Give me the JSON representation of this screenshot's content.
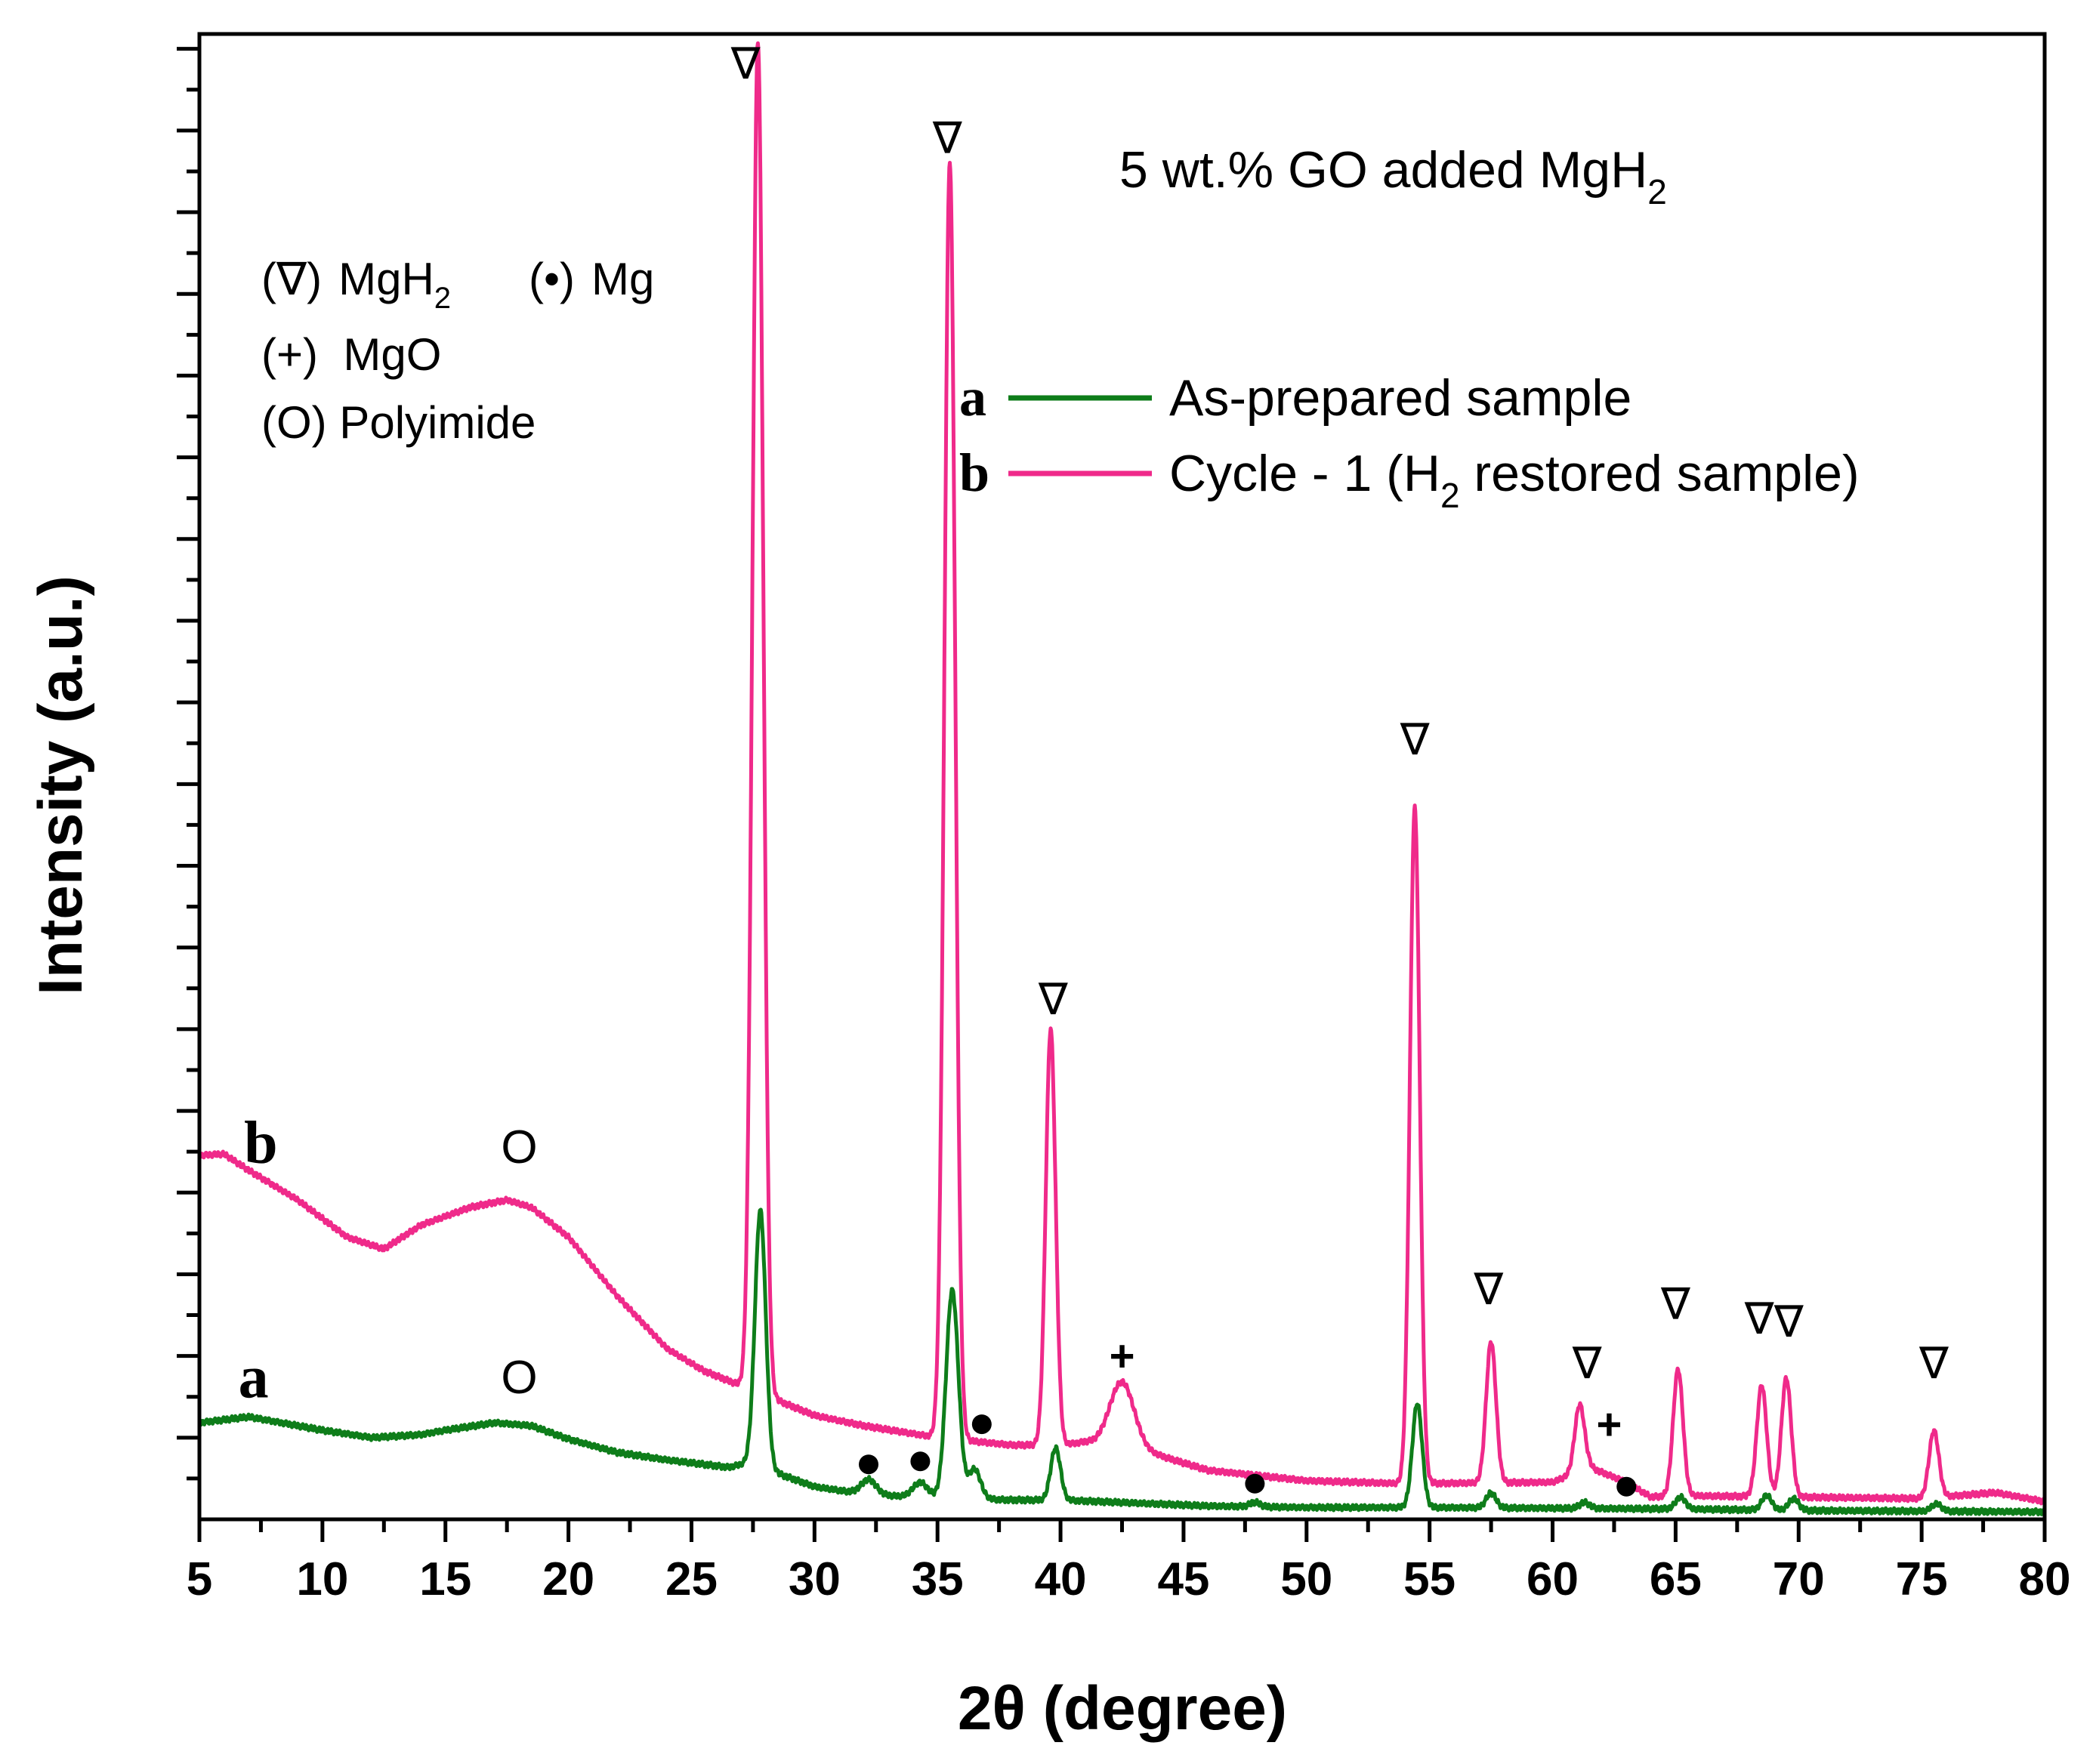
{
  "chart_data": {
    "type": "line",
    "title": "5 wt.% GO added MgH",
    "title_sub": "2",
    "xlabel": "2θ (degree)",
    "ylabel": "Intensity (a.u.)",
    "xlim": [
      5,
      80
    ],
    "ylim": [
      0,
      100
    ],
    "x_ticks": [
      5,
      10,
      15,
      20,
      25,
      30,
      35,
      40,
      45,
      50,
      55,
      60,
      65,
      70,
      75,
      80
    ],
    "y_tick_step": 5.5,
    "phase_legend": {
      "row1_a_symbol": "(∇)",
      "row1_a_name": "MgH",
      "row1_a_sub": "2",
      "row1_b_symbol": "(•)",
      "row1_b_name": "Mg",
      "row2": "(+)  MgO",
      "row3": "(O) Polyimide"
    },
    "series": [
      {
        "name": "As-prepared sample",
        "letter": "a",
        "color": "#0e7d1a",
        "baseline": [
          [
            5,
            6.5
          ],
          [
            7,
            6.9
          ],
          [
            10,
            6.0
          ],
          [
            12,
            5.5
          ],
          [
            14,
            5.7
          ],
          [
            15,
            6.0
          ],
          [
            17,
            6.5
          ],
          [
            18.5,
            6.3
          ],
          [
            20,
            5.4
          ],
          [
            22,
            4.5
          ],
          [
            24,
            4.0
          ],
          [
            26.5,
            3.5
          ],
          [
            27.3,
            3.8
          ],
          [
            30,
            2.2
          ],
          [
            32,
            1.7
          ],
          [
            34,
            1.5
          ],
          [
            38,
            1.3
          ],
          [
            40,
            1.3
          ],
          [
            43,
            1.1
          ],
          [
            46,
            0.9
          ],
          [
            50,
            0.8
          ],
          [
            55,
            0.8
          ],
          [
            60,
            0.75
          ],
          [
            65,
            0.7
          ],
          [
            70,
            0.6
          ],
          [
            75,
            0.55
          ],
          [
            80,
            0.5
          ]
        ],
        "peaks": [
          [
            27.8,
            17.3,
            0.22
          ],
          [
            32.2,
            1.0,
            0.3
          ],
          [
            34.3,
            1.0,
            0.3
          ],
          [
            35.6,
            14.0,
            0.25
          ],
          [
            36.5,
            2.0,
            0.25
          ],
          [
            39.8,
            3.5,
            0.2
          ],
          [
            47.9,
            0.3,
            0.2
          ],
          [
            54.5,
            7.0,
            0.2
          ],
          [
            57.5,
            1.0,
            0.2
          ],
          [
            61.3,
            0.4,
            0.2
          ],
          [
            65.2,
            0.8,
            0.2
          ],
          [
            68.7,
            1.0,
            0.2
          ],
          [
            69.8,
            0.8,
            0.2
          ],
          [
            75.6,
            0.5,
            0.2
          ]
        ]
      },
      {
        "name": "Cycle - 1 (H",
        "name_sub": "2",
        "name_tail": " restored sample)",
        "letter": "b",
        "color": "#ef2a8a",
        "baseline": [
          [
            5,
            24.5
          ],
          [
            6,
            24.6
          ],
          [
            7,
            23.5
          ],
          [
            9,
            21.5
          ],
          [
            11,
            19.0
          ],
          [
            12.5,
            18.2
          ],
          [
            14,
            19.8
          ],
          [
            16,
            21.0
          ],
          [
            17.5,
            21.5
          ],
          [
            18.5,
            21.0
          ],
          [
            20,
            19.0
          ],
          [
            22,
            15.0
          ],
          [
            24,
            11.5
          ],
          [
            25.5,
            10.0
          ],
          [
            27,
            9.0
          ],
          [
            30,
            7.0
          ],
          [
            32,
            6.3
          ],
          [
            35,
            5.5
          ],
          [
            38,
            5.0
          ],
          [
            40,
            5.0
          ],
          [
            41,
            5.2
          ],
          [
            44,
            4.3
          ],
          [
            46,
            3.3
          ],
          [
            50,
            2.6
          ],
          [
            54,
            2.4
          ],
          [
            60,
            2.5
          ],
          [
            61.5,
            3.5
          ],
          [
            63,
            2.5
          ],
          [
            64,
            1.5
          ],
          [
            65,
            1.6
          ],
          [
            70,
            1.5
          ],
          [
            75,
            1.4
          ],
          [
            78,
            1.8
          ],
          [
            80,
            1.2
          ]
        ],
        "peaks": [
          [
            27.7,
            91.0,
            0.22
          ],
          [
            35.5,
            86.0,
            0.22
          ],
          [
            39.6,
            28.0,
            0.2
          ],
          [
            42.5,
            4.5,
            0.5
          ],
          [
            54.4,
            45.5,
            0.2
          ],
          [
            57.5,
            9.5,
            0.2
          ],
          [
            61.1,
            4.5,
            0.2
          ],
          [
            65.1,
            8.5,
            0.2
          ],
          [
            68.5,
            7.5,
            0.2
          ],
          [
            69.5,
            8.0,
            0.2
          ],
          [
            75.5,
            4.5,
            0.2
          ]
        ]
      }
    ],
    "curve_labels": [
      {
        "text": "b",
        "x": 7.5,
        "y": 24.0
      },
      {
        "text": "a",
        "x": 7.2,
        "y": 8.2
      }
    ],
    "annotations": [
      {
        "text": "∇",
        "x": 27.2,
        "y": 97.0
      },
      {
        "text": "∇",
        "x": 35.4,
        "y": 92.0
      },
      {
        "text": "∇",
        "x": 39.7,
        "y": 34.0
      },
      {
        "text": "∇",
        "x": 54.4,
        "y": 51.5
      },
      {
        "text": "∇",
        "x": 57.4,
        "y": 14.5
      },
      {
        "text": "∇",
        "x": 61.4,
        "y": 9.5
      },
      {
        "text": "∇",
        "x": 65.0,
        "y": 13.5
      },
      {
        "text": "∇",
        "x": 68.4,
        "y": 12.5
      },
      {
        "text": "∇",
        "x": 69.6,
        "y": 12.3
      },
      {
        "text": "∇",
        "x": 75.5,
        "y": 9.5
      },
      {
        "text": "+",
        "x": 42.5,
        "y": 10.0
      },
      {
        "text": "+",
        "x": 62.3,
        "y": 5.4
      },
      {
        "text": "O",
        "x": 18.0,
        "y": 24.0
      },
      {
        "text": "O",
        "x": 18.0,
        "y": 8.5
      }
    ],
    "mg_dots": [
      [
        32.2,
        3.7
      ],
      [
        34.3,
        3.9
      ],
      [
        36.8,
        6.4
      ],
      [
        47.9,
        2.4
      ],
      [
        63.0,
        2.2
      ]
    ]
  }
}
